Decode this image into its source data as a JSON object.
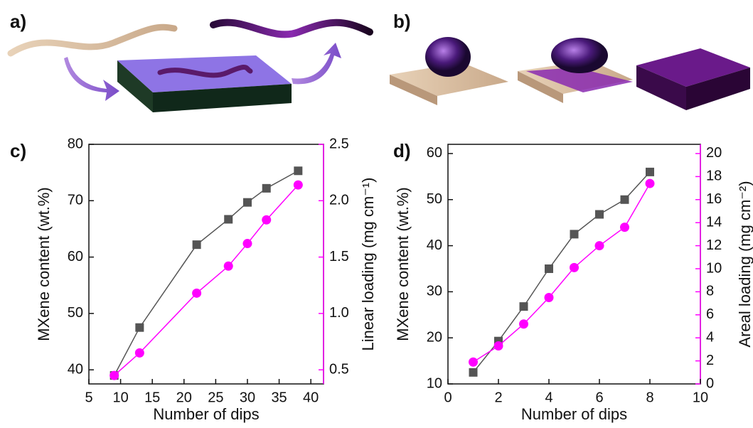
{
  "panel_labels": [
    "a)",
    "b)",
    "c)",
    "d)"
  ],
  "chart_data": [
    {
      "type": "line",
      "xlabel": "Number of dips",
      "ylabel": "MXene content (wt.%)",
      "y2label": "Linear loading (mg cm⁻¹)",
      "x": [
        9,
        13,
        22,
        27,
        30,
        33,
        38
      ],
      "xlim": [
        5,
        42
      ],
      "xticks": [
        5,
        10,
        15,
        20,
        25,
        30,
        35,
        40
      ],
      "ylim": [
        37.5,
        80
      ],
      "yticks": [
        40,
        50,
        60,
        70,
        80
      ],
      "y2lim": [
        0.375,
        2.5
      ],
      "y2ticks": [
        0.5,
        {
          "value": 1.0,
          "label": "1.0"
        },
        1.5,
        {
          "value": 2.0,
          "label": "2.0"
        },
        2.5
      ],
      "y2color": "#ff00ff",
      "series": [
        {
          "color": "#555555",
          "marker": "square",
          "values": [
            39,
            47.5,
            62.2,
            66.7,
            69.7,
            72.2,
            75.3
          ]
        },
        {
          "color": "#ff00ff",
          "marker": "circle",
          "axis": "y2",
          "values": [
            0.45,
            0.65,
            1.18,
            1.42,
            1.62,
            1.83,
            2.14
          ]
        }
      ]
    },
    {
      "type": "line",
      "xlabel": "Number of dips",
      "ylabel": "MXene content (wt.%)",
      "y2label": "Areal loading (mg cm⁻²)",
      "x": [
        1,
        2,
        3,
        4,
        5,
        6,
        7,
        8
      ],
      "xlim": [
        0,
        10
      ],
      "xticks": [
        0,
        2,
        4,
        6,
        8,
        10
      ],
      "ylim": [
        10,
        62
      ],
      "yticks": [
        10,
        20,
        30,
        40,
        50,
        60
      ],
      "y2lim": [
        0,
        20.8
      ],
      "y2ticks": [
        0,
        2,
        4,
        6,
        8,
        10,
        12,
        14,
        16,
        18,
        20
      ],
      "y2color": "#ff00ff",
      "series": [
        {
          "color": "#555555",
          "marker": "square",
          "values": [
            12.5,
            19.3,
            26.8,
            35,
            42.5,
            46.8,
            50,
            56
          ]
        },
        {
          "color": "#ff00ff",
          "marker": "circle",
          "axis": "y2",
          "values": [
            1.9,
            3.3,
            5.2,
            7.5,
            10.1,
            12,
            13.6,
            17.4
          ]
        }
      ]
    }
  ]
}
